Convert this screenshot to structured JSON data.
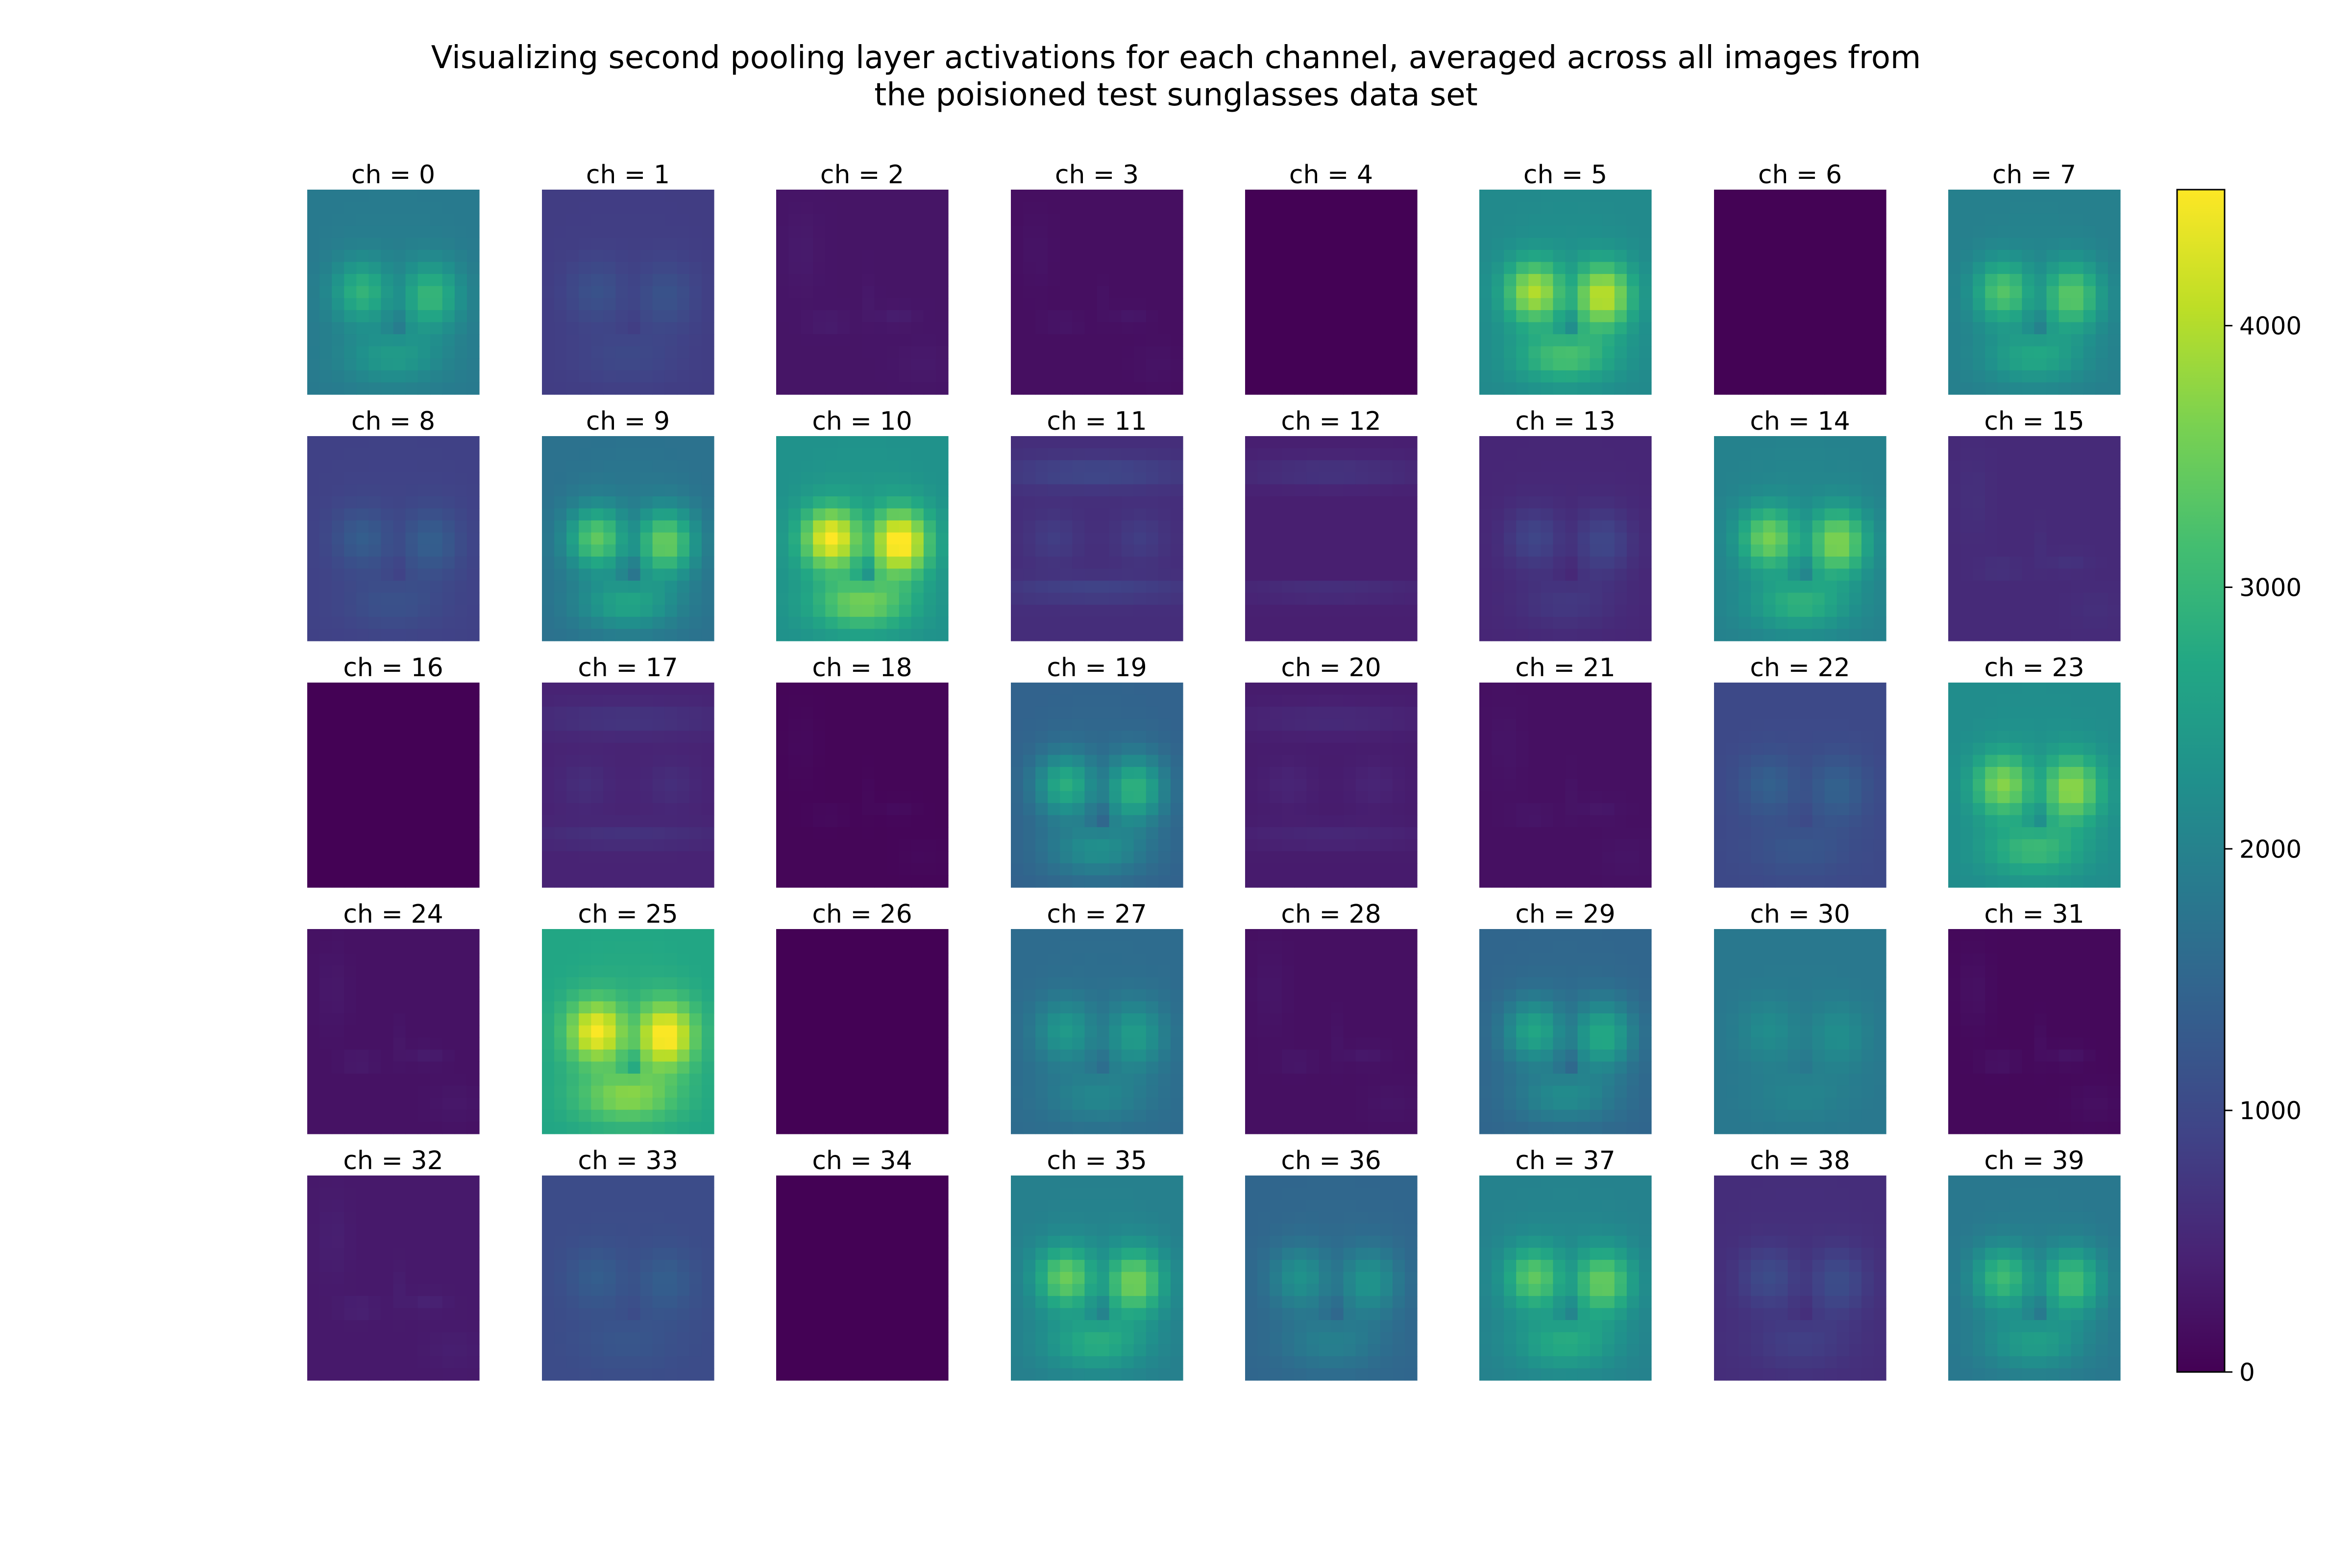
{
  "title_lines": [
    "Visualizing second pooling layer activations for each channel, averaged across all images from",
    "the poisioned test sunglasses data set"
  ],
  "chart_data": {
    "type": "heatmap",
    "colormap": "viridis",
    "layout": "5 rows x 8 columns of small heatmaps with a shared colorbar on the right",
    "panel_title_prefix": "ch = ",
    "colorbar": {
      "range": [
        0,
        4520
      ],
      "ticks": [
        0,
        1000,
        2000,
        3000,
        4000
      ],
      "tick_labels": [
        "0",
        "1000",
        "2000",
        "3000",
        "4000"
      ]
    },
    "channels": [
      {
        "ch": 0,
        "pattern": "goggles",
        "base": 1850,
        "peak": 2950
      },
      {
        "ch": 1,
        "pattern": "goggles",
        "base": 820,
        "peak": 1150
      },
      {
        "ch": 2,
        "pattern": "edges",
        "base": 260,
        "peak": 480
      },
      {
        "ch": 3,
        "pattern": "edges",
        "base": 180,
        "peak": 380
      },
      {
        "ch": 4,
        "pattern": "flat",
        "base": 15,
        "peak": 15
      },
      {
        "ch": 5,
        "pattern": "goggles",
        "base": 2150,
        "peak": 4000
      },
      {
        "ch": 6,
        "pattern": "flat",
        "base": 20,
        "peak": 40
      },
      {
        "ch": 7,
        "pattern": "goggles",
        "base": 1950,
        "peak": 3300
      },
      {
        "ch": 8,
        "pattern": "goggles",
        "base": 880,
        "peak": 1350
      },
      {
        "ch": 9,
        "pattern": "goggles",
        "base": 1700,
        "peak": 3400
      },
      {
        "ch": 10,
        "pattern": "goggles",
        "base": 2300,
        "peak": 4520
      },
      {
        "ch": 11,
        "pattern": "band",
        "base": 600,
        "peak": 1250
      },
      {
        "ch": 12,
        "pattern": "band-dark",
        "base": 400,
        "peak": 900
      },
      {
        "ch": 13,
        "pattern": "goggles",
        "base": 500,
        "peak": 950
      },
      {
        "ch": 14,
        "pattern": "goggles",
        "base": 2000,
        "peak": 3600
      },
      {
        "ch": 15,
        "pattern": "edges",
        "base": 550,
        "peak": 800
      },
      {
        "ch": 16,
        "pattern": "flat",
        "base": 10,
        "peak": 10
      },
      {
        "ch": 17,
        "pattern": "band",
        "base": 450,
        "peak": 900
      },
      {
        "ch": 18,
        "pattern": "edges",
        "base": 60,
        "peak": 220
      },
      {
        "ch": 19,
        "pattern": "goggles",
        "base": 1450,
        "peak": 2850
      },
      {
        "ch": 20,
        "pattern": "band",
        "base": 350,
        "peak": 700
      },
      {
        "ch": 21,
        "pattern": "edges",
        "base": 200,
        "peak": 380
      },
      {
        "ch": 22,
        "pattern": "goggles",
        "base": 1000,
        "peak": 1400
      },
      {
        "ch": 23,
        "pattern": "goggles",
        "base": 2200,
        "peak": 3700
      },
      {
        "ch": 24,
        "pattern": "edges",
        "base": 220,
        "peak": 480
      },
      {
        "ch": 25,
        "pattern": "goggles",
        "base": 2700,
        "peak": 4500
      },
      {
        "ch": 26,
        "pattern": "flat",
        "base": 15,
        "peak": 15
      },
      {
        "ch": 27,
        "pattern": "goggles",
        "base": 1600,
        "peak": 2450
      },
      {
        "ch": 28,
        "pattern": "edges",
        "base": 200,
        "peak": 420
      },
      {
        "ch": 29,
        "pattern": "goggles",
        "base": 1500,
        "peak": 2700
      },
      {
        "ch": 30,
        "pattern": "goggles",
        "base": 1800,
        "peak": 2200
      },
      {
        "ch": 31,
        "pattern": "edges",
        "base": 100,
        "peak": 400
      },
      {
        "ch": 32,
        "pattern": "edges",
        "base": 320,
        "peak": 560
      },
      {
        "ch": 33,
        "pattern": "goggles",
        "base": 1050,
        "peak": 1350
      },
      {
        "ch": 34,
        "pattern": "flat",
        "base": 15,
        "peak": 15
      },
      {
        "ch": 35,
        "pattern": "goggles",
        "base": 1950,
        "peak": 3500
      },
      {
        "ch": 36,
        "pattern": "goggles",
        "base": 1500,
        "peak": 2300
      },
      {
        "ch": 37,
        "pattern": "goggles",
        "base": 2000,
        "peak": 3400
      },
      {
        "ch": 38,
        "pattern": "goggles",
        "base": 600,
        "peak": 1050
      },
      {
        "ch": 39,
        "pattern": "goggles",
        "base": 1800,
        "peak": 3100
      }
    ]
  }
}
